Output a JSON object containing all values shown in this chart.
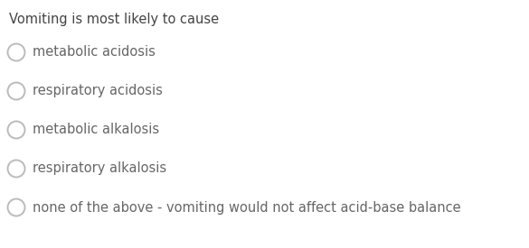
{
  "background_color": "#ffffff",
  "title": "Vomiting is most likely to cause",
  "title_color": "#444444",
  "title_fontsize": 10.5,
  "options": [
    "metabolic acidosis",
    "respiratory acidosis",
    "metabolic alkalosis",
    "respiratory alkalosis",
    "none of the above - vomiting would not affect acid-base balance"
  ],
  "option_fontsize": 10.5,
  "option_color": "#666666",
  "circle_edge_color": "#bbbbbb",
  "circle_face_color": "#ffffff",
  "circle_linewidth": 1.4,
  "fig_width": 5.85,
  "fig_height": 2.75,
  "dpi": 100
}
